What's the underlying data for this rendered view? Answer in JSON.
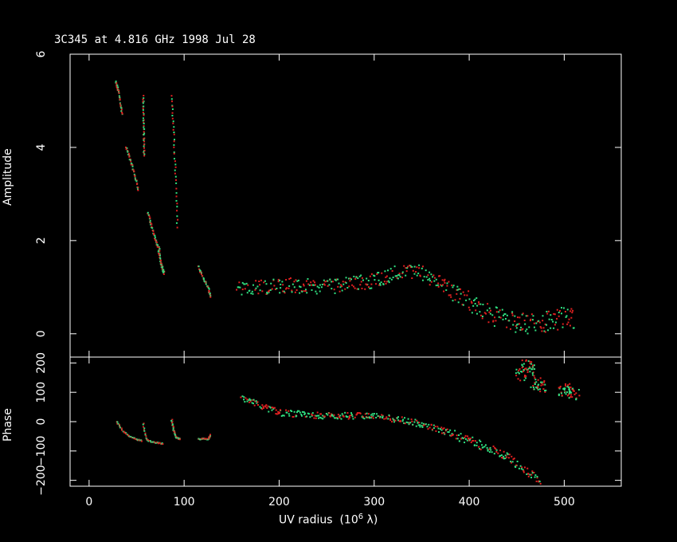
{
  "chart_data": [
    {
      "type": "scatter",
      "title": "3C345 at 4.816 GHz 1998 Jul 28",
      "xlabel": "UV radius (10^6 λ)",
      "ylabel": "Amplitude",
      "xlim": [
        -20,
        560
      ],
      "ylim": [
        -0.5,
        6
      ],
      "xticks": [
        "0",
        "100",
        "200",
        "300",
        "400",
        "500"
      ],
      "yticks": [
        "0",
        "2",
        "4",
        "6"
      ],
      "series_colors": [
        "#e02020",
        "#30e080"
      ],
      "segments": [
        {
          "x": [
            28,
            31,
            35
          ],
          "y": [
            5.4,
            5.2,
            4.7
          ]
        },
        {
          "x": [
            39,
            44,
            48,
            52
          ],
          "y": [
            4.0,
            3.7,
            3.4,
            3.1
          ]
        },
        {
          "x": [
            57,
            57.5,
            58
          ],
          "y": [
            5.1,
            4.4,
            3.8
          ]
        },
        {
          "x": [
            62,
            66,
            70,
            74
          ],
          "y": [
            2.6,
            2.3,
            2.0,
            1.8
          ]
        },
        {
          "x": [
            73,
            76,
            79
          ],
          "y": [
            1.8,
            1.5,
            1.3
          ]
        },
        {
          "x": [
            87,
            89,
            91,
            93
          ],
          "y": [
            5.1,
            4.3,
            3.4,
            2.3
          ]
        },
        {
          "x": [
            115,
            120,
            125,
            128
          ],
          "y": [
            1.45,
            1.2,
            1.0,
            0.8
          ]
        }
      ],
      "trend_x": [
        155,
        180,
        210,
        240,
        270,
        300,
        330,
        345,
        370,
        400,
        430,
        450,
        470,
        500,
        510
      ],
      "trend_y": [
        1.0,
        1.0,
        1.05,
        1.0,
        1.05,
        1.15,
        1.35,
        1.35,
        1.1,
        0.7,
        0.35,
        0.25,
        0.2,
        0.35,
        0.3
      ]
    },
    {
      "type": "scatter",
      "xlabel": "UV radius (10^6 λ)",
      "ylabel": "Phase",
      "xlim": [
        -20,
        560
      ],
      "ylim": [
        -220,
        220
      ],
      "xticks": [
        "0",
        "100",
        "200",
        "300",
        "400",
        "500"
      ],
      "yticks": [
        "−200",
        "−100",
        "0",
        "100",
        "200"
      ],
      "series_colors": [
        "#e02020",
        "#30e080"
      ],
      "segments": [
        {
          "x": [
            29,
            35,
            42,
            50,
            55
          ],
          "y": [
            0,
            -30,
            -50,
            -60,
            -65
          ]
        },
        {
          "x": [
            57,
            60,
            66,
            72,
            78
          ],
          "y": [
            -5,
            -60,
            -70,
            -72,
            -75
          ]
        },
        {
          "x": [
            87,
            89,
            92,
            96
          ],
          "y": [
            5,
            -30,
            -55,
            -60
          ]
        },
        {
          "x": [
            115,
            120,
            125,
            128
          ],
          "y": [
            -60,
            -58,
            -60,
            -45
          ]
        }
      ],
      "trend_x": [
        160,
        200,
        250,
        300,
        340,
        380,
        420,
        445,
        460,
        475
      ],
      "trend_y": [
        80,
        30,
        20,
        20,
        0,
        -40,
        -90,
        -130,
        -170,
        -200
      ],
      "cluster_x": [
        455,
        460,
        465,
        470,
        475,
        500,
        505,
        510
      ],
      "cluster_y": [
        160,
        190,
        175,
        130,
        120,
        100,
        110,
        95
      ]
    }
  ]
}
